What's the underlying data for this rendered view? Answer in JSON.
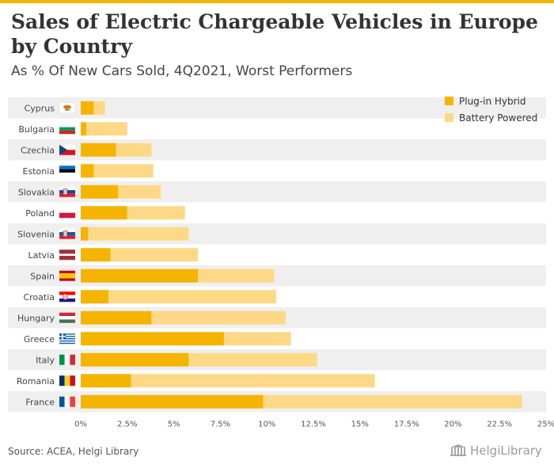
{
  "title": "Sales of Electric Chargeable Vehicles in Europe by Country",
  "subtitle": "As % Of New Cars Sold, 4Q2021, Worst Performers",
  "source": "Source: ACEA, Helgi Library",
  "logo_text": "HelgiLibrary",
  "colors": {
    "plugin": "#f5b400",
    "battery": "#fdd987",
    "band": "#efefef",
    "accent": "#f5b400"
  },
  "chart_data": {
    "type": "bar",
    "orientation": "horizontal",
    "stacked": true,
    "categories": [
      "Cyprus",
      "Bulgaria",
      "Czechia",
      "Estonia",
      "Slovakia",
      "Poland",
      "Slovenia",
      "Latvia",
      "Spain",
      "Croatia",
      "Hungary",
      "Greece",
      "Italy",
      "Romania",
      "France"
    ],
    "series": [
      {
        "name": "Plug-in Hybrid",
        "color": "#f5b400",
        "values": [
          0.7,
          0.3,
          1.9,
          0.7,
          2.0,
          2.5,
          0.4,
          1.6,
          6.3,
          1.5,
          3.8,
          7.7,
          5.8,
          2.7,
          9.8
        ]
      },
      {
        "name": "Battery Powered",
        "color": "#fdd987",
        "values": [
          0.6,
          2.2,
          1.9,
          3.2,
          2.3,
          3.1,
          5.4,
          4.7,
          4.1,
          9.0,
          7.2,
          3.6,
          6.9,
          13.1,
          13.9
        ]
      }
    ],
    "x_ticks": [
      "0%",
      "2.5%",
      "5%",
      "7.5%",
      "10%",
      "12.5%",
      "15%",
      "17.5%",
      "20%",
      "22.5%",
      "25%"
    ],
    "xlim": [
      0,
      25
    ],
    "legend_position": "top-right",
    "grid": false
  }
}
